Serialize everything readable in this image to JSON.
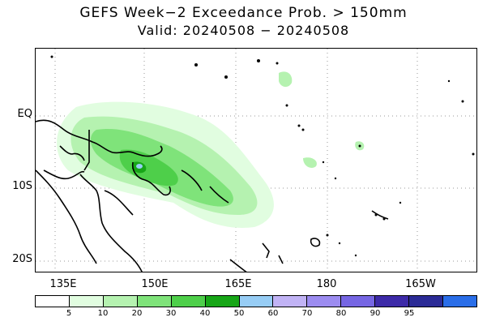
{
  "title": "GEFS Week−2 Exceedance Prob. > 150mm",
  "subtitle": "Valid: 20240508 − 20240508",
  "lat_labels": [
    "EQ",
    "10S",
    "20S"
  ],
  "lon_labels": [
    "135E",
    "150E",
    "165E",
    "180",
    "165W"
  ],
  "colorbar": {
    "colors": [
      "#ffffff",
      "#e1fde0",
      "#b5f2b0",
      "#7fe37a",
      "#4ecf4a",
      "#17a617",
      "#97cdf5",
      "#c1b3f5",
      "#9c8cf0",
      "#7666e3",
      "#3d2aa8",
      "#2b2b96",
      "#2a6ee8"
    ],
    "labels": [
      "5",
      "10",
      "20",
      "30",
      "40",
      "50",
      "60",
      "70",
      "80",
      "90",
      "95"
    ]
  }
}
